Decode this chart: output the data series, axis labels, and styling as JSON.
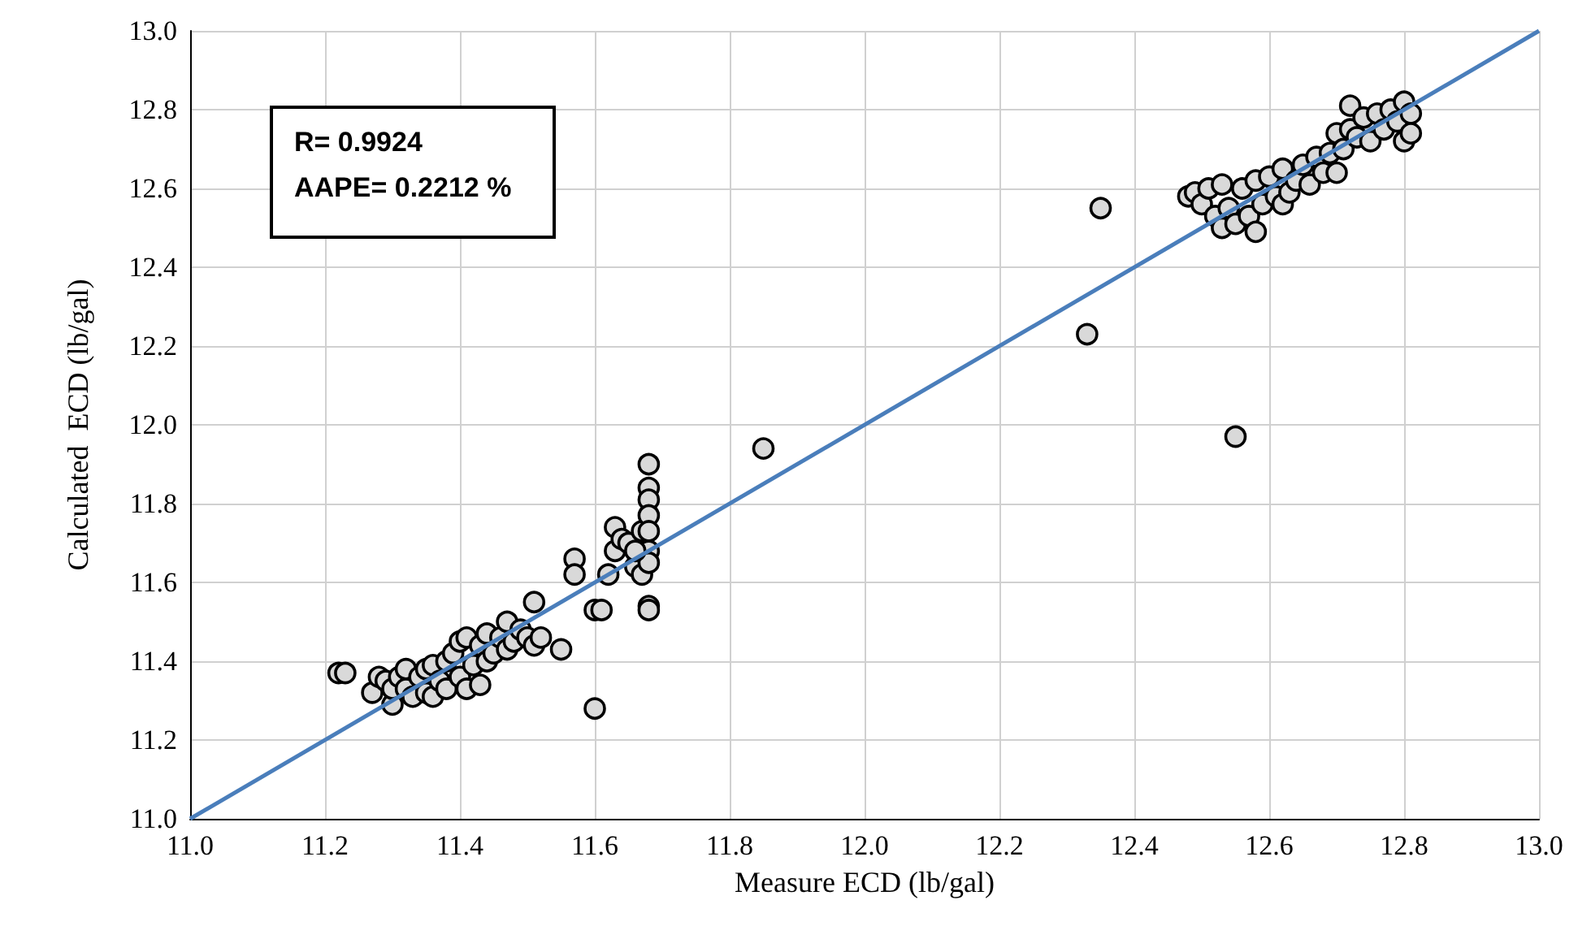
{
  "chart_data": {
    "type": "scatter",
    "xlabel": "Measure ECD (lb/gal)",
    "ylabel": "Calculated  ECD (lb/gal)",
    "annotations": [
      "R= 0.9924",
      "AAPE= 0.2212 %"
    ],
    "xlim": [
      11.0,
      13.0
    ],
    "ylim": [
      11.0,
      13.0
    ],
    "xticks": [
      {
        "value": 11.0,
        "label": "11.0"
      },
      {
        "value": 11.2,
        "label": "11.2"
      },
      {
        "value": 11.4,
        "label": "11.4"
      },
      {
        "value": 11.6,
        "label": "11.6"
      },
      {
        "value": 11.8,
        "label": "11.8"
      },
      {
        "value": 12.0,
        "label": "12.0"
      },
      {
        "value": 12.2,
        "label": "12.2"
      },
      {
        "value": 12.4,
        "label": "12.4"
      },
      {
        "value": 12.6,
        "label": "12.6"
      },
      {
        "value": 12.8,
        "label": "12.8"
      },
      {
        "value": 13.0,
        "label": "13.0"
      }
    ],
    "yticks": [
      {
        "value": 11.0,
        "label": "11.0"
      },
      {
        "value": 11.2,
        "label": "11.2"
      },
      {
        "value": 11.4,
        "label": "11.4"
      },
      {
        "value": 11.6,
        "label": "11.6"
      },
      {
        "value": 11.8,
        "label": "11.8"
      },
      {
        "value": 12.0,
        "label": "12.0"
      },
      {
        "value": 12.2,
        "label": "12.2"
      },
      {
        "value": 12.4,
        "label": "12.4"
      },
      {
        "value": 12.6,
        "label": "12.6"
      },
      {
        "value": 12.8,
        "label": "12.8"
      },
      {
        "value": 13.0,
        "label": "13.0"
      }
    ],
    "grid": true,
    "marker": "circle",
    "series": [
      {
        "color": "#d9d9d9",
        "x": [
          11.22,
          11.23,
          11.27,
          11.28,
          11.29,
          11.3,
          11.3,
          11.31,
          11.32,
          11.32,
          11.33,
          11.34,
          11.35,
          11.35,
          11.36,
          11.36,
          11.37,
          11.38,
          11.38,
          11.39,
          11.4,
          11.4,
          11.41,
          11.41,
          11.42,
          11.43,
          11.43,
          11.44,
          11.44,
          11.45,
          11.46,
          11.47,
          11.47,
          11.48,
          11.49,
          11.5,
          11.51,
          11.51,
          11.52,
          11.55,
          11.57,
          11.57,
          11.6,
          11.6,
          11.61,
          11.62,
          11.63,
          11.63,
          11.64,
          11.65,
          11.66,
          11.67,
          11.67,
          11.68,
          11.68,
          11.68,
          11.68,
          11.68,
          11.68,
          11.68,
          11.68,
          11.68,
          11.66,
          11.85,
          12.33,
          12.35,
          12.55,
          12.48,
          12.49,
          12.5,
          12.51,
          12.52,
          12.53,
          12.53,
          12.54,
          12.55,
          12.56,
          12.57,
          12.58,
          12.58,
          12.59,
          12.6,
          12.61,
          12.62,
          12.62,
          12.63,
          12.64,
          12.65,
          12.66,
          12.67,
          12.68,
          12.69,
          12.7,
          12.7,
          12.71,
          12.72,
          12.72,
          12.73,
          12.74,
          12.75,
          12.76,
          12.77,
          12.78,
          12.79,
          12.8,
          12.8,
          12.81,
          12.81
        ],
        "values": [
          11.37,
          11.37,
          11.32,
          11.36,
          11.35,
          11.29,
          11.33,
          11.36,
          11.38,
          11.33,
          11.31,
          11.36,
          11.38,
          11.32,
          11.31,
          11.39,
          11.35,
          11.33,
          11.4,
          11.42,
          11.36,
          11.45,
          11.33,
          11.46,
          11.39,
          11.34,
          11.44,
          11.47,
          11.4,
          11.42,
          11.46,
          11.5,
          11.43,
          11.45,
          11.48,
          11.46,
          11.44,
          11.55,
          11.46,
          11.43,
          11.66,
          11.62,
          11.28,
          11.53,
          11.53,
          11.62,
          11.74,
          11.68,
          11.71,
          11.7,
          11.64,
          11.73,
          11.62,
          11.9,
          11.84,
          11.81,
          11.77,
          11.73,
          11.68,
          11.65,
          11.54,
          11.53,
          11.68,
          11.94,
          12.23,
          12.55,
          11.97,
          12.58,
          12.59,
          12.56,
          12.6,
          12.53,
          12.5,
          12.61,
          12.55,
          12.51,
          12.6,
          12.53,
          12.62,
          12.49,
          12.56,
          12.63,
          12.58,
          12.56,
          12.65,
          12.59,
          12.62,
          12.66,
          12.61,
          12.68,
          12.64,
          12.69,
          12.74,
          12.64,
          12.7,
          12.81,
          12.75,
          12.73,
          12.78,
          12.72,
          12.79,
          12.75,
          12.8,
          12.77,
          12.82,
          12.72,
          12.79,
          12.74
        ]
      },
      {
        "type": "line",
        "color": "#4a7ebb",
        "marker": "none",
        "x": [
          11.0,
          13.0
        ],
        "values": [
          11.0,
          13.0
        ]
      }
    ]
  }
}
